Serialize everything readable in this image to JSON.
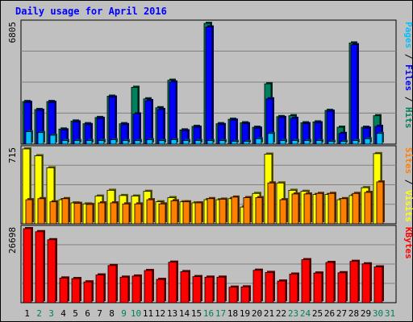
{
  "title": "Daily usage for April 2016",
  "colors": {
    "hits": "#00805c",
    "files": "#0000ff",
    "pages": "#00c0ff",
    "visits": "#ffff00",
    "sites": "#ff8000",
    "kbytes": "#ff0000",
    "weekday": "#000000",
    "weekend": "#00805c",
    "background": "#c0c0c0"
  },
  "chart_data": {
    "type": "bar",
    "categories": [
      "1",
      "2",
      "3",
      "4",
      "5",
      "6",
      "7",
      "8",
      "9",
      "10",
      "11",
      "12",
      "13",
      "14",
      "15",
      "16",
      "17",
      "18",
      "19",
      "20",
      "21",
      "22",
      "23",
      "24",
      "25",
      "26",
      "27",
      "28",
      "29",
      "30",
      "31"
    ],
    "weekend_days": [
      "2",
      "3",
      "9",
      "10",
      "16",
      "17",
      "23",
      "24",
      "30",
      "31"
    ],
    "panels": [
      {
        "id": "top",
        "ymax_label": "6805",
        "ymax": 6805,
        "right_labels": [
          {
            "text": "Pages",
            "color": "#00c0ff"
          },
          {
            "text": " / ",
            "color": "#000000"
          },
          {
            "text": "Files",
            "color": "#0000ff"
          },
          {
            "text": " / ",
            "color": "#000000"
          },
          {
            "text": "Hits",
            "color": "#00805c"
          }
        ],
        "series": [
          {
            "name": "Hits",
            "values": [
              2400,
              1950,
              2400,
              850,
              1300,
              1150,
              1500,
              2700,
              1150,
              3200,
              2550,
              2050,
              3600,
              800,
              1000,
              6805,
              1150,
              1400,
              1200,
              950,
              3400,
              1550,
              1600,
              1200,
              1250,
              1900,
              950,
              5700,
              950,
              1600,
              0
            ]
          },
          {
            "name": "Files",
            "values": [
              2350,
              1900,
              2350,
              800,
              1250,
              1100,
              1450,
              2650,
              1100,
              1700,
              2450,
              1950,
              3500,
              750,
              950,
              6600,
              1100,
              1350,
              1150,
              900,
              2550,
              1500,
              1450,
              1150,
              1200,
              1850,
              600,
              5600,
              900,
              1000,
              0
            ]
          },
          {
            "name": "Pages",
            "values": [
              700,
              650,
              500,
              200,
              200,
              200,
              200,
              250,
              200,
              200,
              250,
              200,
              250,
              200,
              200,
              200,
              200,
              150,
              150,
              300,
              600,
              200,
              200,
              200,
              200,
              150,
              150,
              200,
              300,
              600,
              0
            ]
          }
        ]
      },
      {
        "id": "middle",
        "ymax_label": "715",
        "ymax": 715,
        "right_labels": [
          {
            "text": "Sites",
            "color": "#ff8000"
          },
          {
            "text": " / ",
            "color": "#000000"
          },
          {
            "text": "Visits",
            "color": "#ffff00"
          }
        ],
        "series": [
          {
            "name": "Visits",
            "values": [
              715,
              650,
              535,
              230,
              200,
              190,
              265,
              320,
              270,
              265,
              310,
              210,
              250,
              210,
              200,
              230,
              230,
              240,
              160,
              290,
              665,
              390,
              320,
              310,
              280,
              280,
              230,
              270,
              345,
              670,
              0
            ]
          },
          {
            "name": "Sites",
            "values": [
              230,
              240,
              210,
              240,
              195,
              185,
              200,
              200,
              190,
              190,
              230,
              190,
              220,
              210,
              200,
              240,
              235,
              255,
              250,
              250,
              390,
              230,
              285,
              285,
              290,
              290,
              240,
              290,
              300,
              400,
              0
            ]
          }
        ]
      },
      {
        "id": "bottom",
        "ymax_label": "26698",
        "ymax": 26698,
        "right_labels": [
          {
            "text": "KBytes",
            "color": "#ff0000"
          }
        ],
        "series": [
          {
            "name": "KBytes",
            "values": [
              26698,
              25600,
              22700,
              8900,
              8700,
              7500,
              10000,
              13400,
              9200,
              9600,
              11600,
              8400,
              14600,
              11200,
              9400,
              9200,
              9200,
              5600,
              5700,
              11700,
              10900,
              7800,
              10300,
              15500,
              10700,
              14500,
              10800,
              14900,
              14000,
              12900,
              0
            ]
          }
        ]
      }
    ]
  }
}
